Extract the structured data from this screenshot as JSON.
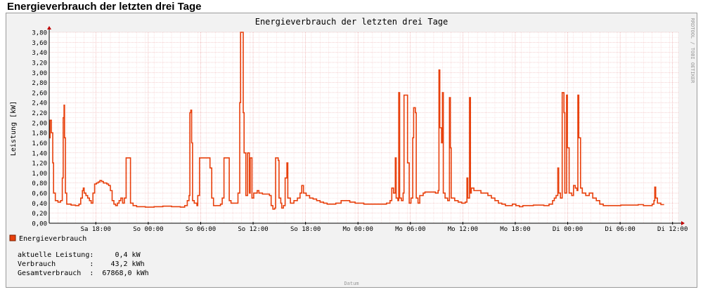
{
  "page": {
    "heading": "Energieverbrauch der letzten drei Tage"
  },
  "chart_data": {
    "type": "line",
    "title": "Energieverbrauch der letzten drei Tage",
    "ylabel": "Leistung [kW]",
    "xlabel": "Datum",
    "watermark": "RRDTOOL / TOBI OETIKER",
    "ylim": [
      0,
      3.8
    ],
    "yticks": [
      "0,00",
      "0,20",
      "0,40",
      "0,60",
      "0,80",
      "1,00",
      "1,20",
      "1,40",
      "1,60",
      "1,80",
      "2,00",
      "2,20",
      "2,40",
      "2,60",
      "2,80",
      "3,00",
      "3,20",
      "3,40",
      "3,60",
      "3,80"
    ],
    "xticks": [
      "Sa 18:00",
      "So 00:00",
      "So 06:00",
      "So 12:00",
      "So 18:00",
      "Mo 00:00",
      "Mo 06:00",
      "Mo 12:00",
      "Mo 18:00",
      "Di 00:00",
      "Di 06:00",
      "Di 12:00"
    ],
    "x_unit": "hours since Sa 12:40",
    "xlim": [
      0,
      72
    ],
    "grid": true,
    "legend_position": "bottom-left",
    "line_color": "#e8400c",
    "series": [
      {
        "name": "Energieverbrauch",
        "points": [
          [
            0.0,
            1.7
          ],
          [
            0.1,
            2.05
          ],
          [
            0.25,
            1.8
          ],
          [
            0.4,
            1.2
          ],
          [
            0.5,
            0.6
          ],
          [
            0.7,
            0.45
          ],
          [
            1.0,
            0.42
          ],
          [
            1.3,
            0.45
          ],
          [
            1.5,
            0.9
          ],
          [
            1.6,
            2.1
          ],
          [
            1.7,
            2.35
          ],
          [
            1.75,
            1.7
          ],
          [
            1.85,
            0.6
          ],
          [
            2.0,
            0.38
          ],
          [
            2.5,
            0.36
          ],
          [
            3.0,
            0.35
          ],
          [
            3.4,
            0.38
          ],
          [
            3.6,
            0.5
          ],
          [
            3.8,
            0.65
          ],
          [
            3.9,
            0.7
          ],
          [
            4.0,
            0.6
          ],
          [
            4.2,
            0.55
          ],
          [
            4.4,
            0.5
          ],
          [
            4.6,
            0.45
          ],
          [
            4.8,
            0.4
          ],
          [
            5.0,
            0.6
          ],
          [
            5.2,
            0.78
          ],
          [
            5.4,
            0.8
          ],
          [
            5.6,
            0.82
          ],
          [
            5.8,
            0.85
          ],
          [
            6.0,
            0.83
          ],
          [
            6.2,
            0.8
          ],
          [
            6.4,
            0.8
          ],
          [
            6.6,
            0.78
          ],
          [
            6.8,
            0.75
          ],
          [
            7.0,
            0.65
          ],
          [
            7.2,
            0.45
          ],
          [
            7.4,
            0.38
          ],
          [
            7.6,
            0.35
          ],
          [
            7.8,
            0.4
          ],
          [
            8.0,
            0.45
          ],
          [
            8.2,
            0.5
          ],
          [
            8.4,
            0.4
          ],
          [
            8.6,
            0.5
          ],
          [
            8.8,
            1.3
          ],
          [
            9.2,
            1.3
          ],
          [
            9.3,
            0.4
          ],
          [
            9.6,
            0.35
          ],
          [
            10.0,
            0.33
          ],
          [
            11.0,
            0.32
          ],
          [
            12.0,
            0.33
          ],
          [
            13.0,
            0.34
          ],
          [
            14.0,
            0.33
          ],
          [
            15.0,
            0.32
          ],
          [
            15.5,
            0.35
          ],
          [
            15.8,
            0.45
          ],
          [
            16.0,
            0.55
          ],
          [
            16.1,
            2.2
          ],
          [
            16.2,
            2.25
          ],
          [
            16.3,
            1.6
          ],
          [
            16.4,
            0.45
          ],
          [
            16.6,
            0.4
          ],
          [
            16.9,
            0.35
          ],
          [
            17.0,
            0.55
          ],
          [
            17.2,
            1.3
          ],
          [
            18.2,
            1.3
          ],
          [
            18.4,
            1.1
          ],
          [
            18.6,
            0.5
          ],
          [
            18.8,
            0.35
          ],
          [
            19.2,
            0.35
          ],
          [
            19.6,
            0.38
          ],
          [
            19.8,
            0.5
          ],
          [
            20.0,
            1.3
          ],
          [
            20.4,
            1.3
          ],
          [
            20.6,
            0.45
          ],
          [
            20.8,
            0.4
          ],
          [
            21.2,
            0.4
          ],
          [
            21.6,
            0.6
          ],
          [
            21.8,
            2.4
          ],
          [
            21.9,
            3.8
          ],
          [
            22.1,
            3.8
          ],
          [
            22.2,
            2.2
          ],
          [
            22.3,
            1.4
          ],
          [
            22.5,
            0.55
          ],
          [
            22.7,
            1.4
          ],
          [
            22.9,
            0.6
          ],
          [
            23.0,
            1.3
          ],
          [
            23.2,
            0.5
          ],
          [
            23.4,
            0.6
          ],
          [
            23.8,
            0.65
          ],
          [
            24.0,
            0.6
          ],
          [
            24.4,
            0.58
          ],
          [
            24.8,
            0.58
          ],
          [
            25.2,
            0.55
          ],
          [
            25.4,
            0.35
          ],
          [
            25.6,
            0.28
          ],
          [
            25.8,
            0.3
          ],
          [
            25.9,
            1.3
          ],
          [
            26.2,
            1.25
          ],
          [
            26.3,
            0.5
          ],
          [
            26.5,
            0.4
          ],
          [
            26.6,
            0.3
          ],
          [
            26.8,
            0.35
          ],
          [
            27.0,
            0.9
          ],
          [
            27.2,
            1.2
          ],
          [
            27.3,
            0.5
          ],
          [
            27.6,
            0.4
          ],
          [
            28.0,
            0.45
          ],
          [
            28.4,
            0.5
          ],
          [
            28.7,
            0.6
          ],
          [
            28.9,
            0.75
          ],
          [
            29.1,
            0.6
          ],
          [
            29.4,
            0.55
          ],
          [
            29.8,
            0.5
          ],
          [
            30.2,
            0.48
          ],
          [
            30.6,
            0.45
          ],
          [
            31.0,
            0.42
          ],
          [
            31.4,
            0.4
          ],
          [
            31.8,
            0.38
          ],
          [
            32.2,
            0.38
          ],
          [
            32.8,
            0.4
          ],
          [
            33.4,
            0.45
          ],
          [
            34.0,
            0.45
          ],
          [
            34.4,
            0.42
          ],
          [
            35.0,
            0.4
          ],
          [
            36.0,
            0.38
          ],
          [
            37.0,
            0.38
          ],
          [
            38.0,
            0.38
          ],
          [
            38.6,
            0.4
          ],
          [
            39.0,
            0.45
          ],
          [
            39.2,
            0.7
          ],
          [
            39.4,
            0.6
          ],
          [
            39.6,
            1.3
          ],
          [
            39.7,
            0.5
          ],
          [
            39.9,
            0.45
          ],
          [
            40.0,
            2.6
          ],
          [
            40.1,
            0.5
          ],
          [
            40.3,
            0.45
          ],
          [
            40.5,
            0.6
          ],
          [
            40.6,
            2.55
          ],
          [
            40.9,
            2.55
          ],
          [
            41.0,
            1.2
          ],
          [
            41.2,
            0.4
          ],
          [
            41.4,
            0.5
          ],
          [
            41.6,
            1.7
          ],
          [
            41.7,
            2.3
          ],
          [
            41.9,
            2.2
          ],
          [
            42.0,
            0.5
          ],
          [
            42.2,
            0.4
          ],
          [
            42.4,
            0.55
          ],
          [
            42.6,
            0.55
          ],
          [
            42.8,
            0.6
          ],
          [
            43.0,
            0.62
          ],
          [
            43.4,
            0.62
          ],
          [
            43.8,
            0.62
          ],
          [
            44.2,
            0.6
          ],
          [
            44.5,
            0.65
          ],
          [
            44.6,
            3.05
          ],
          [
            44.7,
            1.9
          ],
          [
            44.9,
            1.6
          ],
          [
            45.0,
            2.6
          ],
          [
            45.1,
            0.6
          ],
          [
            45.3,
            0.5
          ],
          [
            45.6,
            0.45
          ],
          [
            45.8,
            2.5
          ],
          [
            45.9,
            1.5
          ],
          [
            46.0,
            0.5
          ],
          [
            46.4,
            0.45
          ],
          [
            46.8,
            0.42
          ],
          [
            47.2,
            0.4
          ],
          [
            47.6,
            0.42
          ],
          [
            47.8,
            0.9
          ],
          [
            47.9,
            0.5
          ],
          [
            48.1,
            2.5
          ],
          [
            48.2,
            0.6
          ],
          [
            48.3,
            0.7
          ],
          [
            48.6,
            0.65
          ],
          [
            49.0,
            0.65
          ],
          [
            49.4,
            0.6
          ],
          [
            49.8,
            0.6
          ],
          [
            50.2,
            0.55
          ],
          [
            50.6,
            0.5
          ],
          [
            51.0,
            0.45
          ],
          [
            51.4,
            0.4
          ],
          [
            51.8,
            0.38
          ],
          [
            52.2,
            0.35
          ],
          [
            52.6,
            0.35
          ],
          [
            53.0,
            0.38
          ],
          [
            53.4,
            0.35
          ],
          [
            53.8,
            0.33
          ],
          [
            54.2,
            0.35
          ],
          [
            54.8,
            0.35
          ],
          [
            55.4,
            0.36
          ],
          [
            56.0,
            0.36
          ],
          [
            56.6,
            0.35
          ],
          [
            57.2,
            0.38
          ],
          [
            57.6,
            0.45
          ],
          [
            57.8,
            0.5
          ],
          [
            58.0,
            0.55
          ],
          [
            58.2,
            1.1
          ],
          [
            58.3,
            0.6
          ],
          [
            58.5,
            0.5
          ],
          [
            58.7,
            2.6
          ],
          [
            58.9,
            2.2
          ],
          [
            59.0,
            0.6
          ],
          [
            59.2,
            2.55
          ],
          [
            59.3,
            1.5
          ],
          [
            59.5,
            0.6
          ],
          [
            59.8,
            0.55
          ],
          [
            60.0,
            0.75
          ],
          [
            60.2,
            0.7
          ],
          [
            60.4,
            0.65
          ],
          [
            60.5,
            2.55
          ],
          [
            60.6,
            1.7
          ],
          [
            60.8,
            0.7
          ],
          [
            61.0,
            0.6
          ],
          [
            61.4,
            0.55
          ],
          [
            61.8,
            0.6
          ],
          [
            62.2,
            0.5
          ],
          [
            62.6,
            0.45
          ],
          [
            63.0,
            0.38
          ],
          [
            63.4,
            0.35
          ],
          [
            63.8,
            0.35
          ],
          [
            64.2,
            0.35
          ],
          [
            64.6,
            0.35
          ],
          [
            65.0,
            0.35
          ],
          [
            65.4,
            0.36
          ],
          [
            65.8,
            0.36
          ],
          [
            66.2,
            0.36
          ],
          [
            66.6,
            0.36
          ],
          [
            67.0,
            0.36
          ],
          [
            67.4,
            0.37
          ],
          [
            68.0,
            0.35
          ],
          [
            68.6,
            0.35
          ],
          [
            69.0,
            0.38
          ],
          [
            69.2,
            0.45
          ],
          [
            69.3,
            0.72
          ],
          [
            69.4,
            0.5
          ],
          [
            69.6,
            0.4
          ],
          [
            70.0,
            0.37
          ],
          [
            70.3,
            0.38
          ]
        ]
      }
    ]
  },
  "legend": {
    "label": "Energieverbrauch",
    "color": "#e8400c"
  },
  "info": {
    "line1": "aktuelle Leistung:     0,4 kW",
    "line2": "Verbrauch        :    43,2 kWh",
    "line3": "Gesamtverbrauch  :  67868,0 kWh"
  }
}
